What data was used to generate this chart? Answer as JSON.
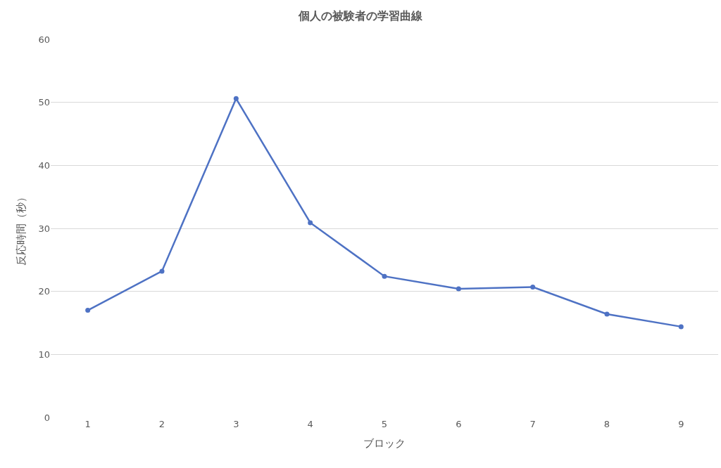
{
  "chart_data": {
    "type": "line",
    "title": "個人の被験者の学習曲線",
    "xlabel": "ブロック",
    "ylabel": "反応時間（秒）",
    "categories": [
      "1",
      "2",
      "3",
      "4",
      "5",
      "6",
      "7",
      "8",
      "9"
    ],
    "series": [
      {
        "color": "#4e72c4",
        "values": [
          17.0,
          23.2,
          50.6,
          30.9,
          22.4,
          20.4,
          20.7,
          16.4,
          14.4
        ]
      }
    ],
    "ylim": [
      0,
      60
    ],
    "yticks": [
      0,
      10,
      20,
      30,
      40,
      50,
      60
    ],
    "grid": "y",
    "marker": "circle",
    "line_style": "solid"
  }
}
